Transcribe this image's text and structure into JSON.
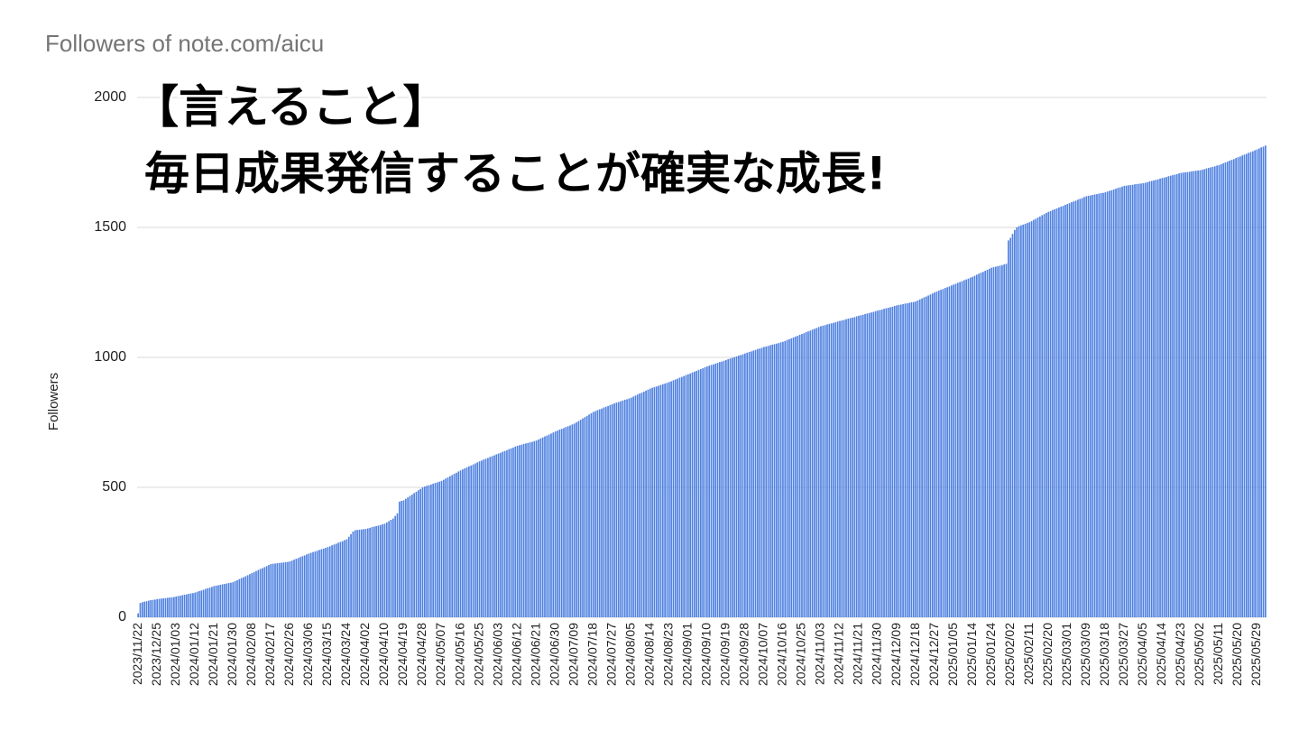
{
  "chart_data": {
    "type": "bar",
    "title": "Followers of note.com/aicu",
    "y_label": "Followers",
    "annotations": [
      "【言えること】",
      "毎日成果発信することが確実な成長!"
    ],
    "color": "#4f81e0",
    "grid": true,
    "ylim": [
      0,
      2000
    ],
    "yticks": [
      0,
      500,
      1000,
      1500,
      2000
    ],
    "categories": [
      "2023/11/22",
      null,
      null,
      null,
      null,
      null,
      null,
      null,
      null,
      "2023/12/25",
      null,
      null,
      null,
      null,
      null,
      null,
      null,
      null,
      "2024/01/03",
      null,
      null,
      null,
      null,
      null,
      null,
      null,
      null,
      "2024/01/12",
      null,
      null,
      null,
      null,
      null,
      null,
      null,
      null,
      "2024/01/21",
      null,
      null,
      null,
      null,
      null,
      null,
      null,
      null,
      "2024/01/30",
      null,
      null,
      null,
      null,
      null,
      null,
      null,
      null,
      "2024/02/08",
      null,
      null,
      null,
      null,
      null,
      null,
      null,
      null,
      "2024/02/17",
      null,
      null,
      null,
      null,
      null,
      null,
      null,
      null,
      "2024/02/26",
      null,
      null,
      null,
      null,
      null,
      null,
      null,
      null,
      "2024/03/06",
      null,
      null,
      null,
      null,
      null,
      null,
      null,
      null,
      "2024/03/15",
      null,
      null,
      null,
      null,
      null,
      null,
      null,
      null,
      "2024/03/24",
      null,
      null,
      null,
      null,
      null,
      null,
      null,
      null,
      "2024/04/02",
      null,
      null,
      null,
      null,
      null,
      null,
      null,
      null,
      "2024/04/10",
      null,
      null,
      null,
      null,
      null,
      null,
      null,
      null,
      "2024/04/19",
      null,
      null,
      null,
      null,
      null,
      null,
      null,
      null,
      "2024/04/28",
      null,
      null,
      null,
      null,
      null,
      null,
      null,
      null,
      "2024/05/07",
      null,
      null,
      null,
      null,
      null,
      null,
      null,
      null,
      "2024/05/16",
      null,
      null,
      null,
      null,
      null,
      null,
      null,
      null,
      "2024/05/25",
      null,
      null,
      null,
      null,
      null,
      null,
      null,
      null,
      "2024/06/03",
      null,
      null,
      null,
      null,
      null,
      null,
      null,
      null,
      "2024/06/12",
      null,
      null,
      null,
      null,
      null,
      null,
      null,
      null,
      "2024/06/21",
      null,
      null,
      null,
      null,
      null,
      null,
      null,
      null,
      "2024/06/30",
      null,
      null,
      null,
      null,
      null,
      null,
      null,
      null,
      "2024/07/09",
      null,
      null,
      null,
      null,
      null,
      null,
      null,
      null,
      "2024/07/18",
      null,
      null,
      null,
      null,
      null,
      null,
      null,
      null,
      "2024/07/27",
      null,
      null,
      null,
      null,
      null,
      null,
      null,
      null,
      "2024/08/05",
      null,
      null,
      null,
      null,
      null,
      null,
      null,
      null,
      "2024/08/14",
      null,
      null,
      null,
      null,
      null,
      null,
      null,
      null,
      "2024/08/23",
      null,
      null,
      null,
      null,
      null,
      null,
      null,
      null,
      "2024/09/01",
      null,
      null,
      null,
      null,
      null,
      null,
      null,
      null,
      "2024/09/10",
      null,
      null,
      null,
      null,
      null,
      null,
      null,
      null,
      "2024/09/19",
      null,
      null,
      null,
      null,
      null,
      null,
      null,
      null,
      "2024/09/28",
      null,
      null,
      null,
      null,
      null,
      null,
      null,
      null,
      "2024/10/07",
      null,
      null,
      null,
      null,
      null,
      null,
      null,
      null,
      "2024/10/16",
      null,
      null,
      null,
      null,
      null,
      null,
      null,
      null,
      "2024/10/25",
      null,
      null,
      null,
      null,
      null,
      null,
      null,
      null,
      "2024/11/03",
      null,
      null,
      null,
      null,
      null,
      null,
      null,
      null,
      "2024/11/12",
      null,
      null,
      null,
      null,
      null,
      null,
      null,
      null,
      "2024/11/21",
      null,
      null,
      null,
      null,
      null,
      null,
      null,
      null,
      "2024/11/30",
      null,
      null,
      null,
      null,
      null,
      null,
      null,
      null,
      "2024/12/09",
      null,
      null,
      null,
      null,
      null,
      null,
      null,
      null,
      "2024/12/18",
      null,
      null,
      null,
      null,
      null,
      null,
      null,
      null,
      "2024/12/27",
      null,
      null,
      null,
      null,
      null,
      null,
      null,
      null,
      "2025/01/05",
      null,
      null,
      null,
      null,
      null,
      null,
      null,
      null,
      "2025/01/14",
      null,
      null,
      null,
      null,
      null,
      null,
      null,
      null,
      "2025/01/24",
      null,
      null,
      null,
      null,
      null,
      null,
      null,
      null,
      "2025/02/02",
      null,
      null,
      null,
      null,
      null,
      null,
      null,
      null,
      "2025/02/11",
      null,
      null,
      null,
      null,
      null,
      null,
      null,
      null,
      "2025/02/20",
      null,
      null,
      null,
      null,
      null,
      null,
      null,
      null,
      "2025/03/01",
      null,
      null,
      null,
      null,
      null,
      null,
      null,
      null,
      "2025/03/09",
      null,
      null,
      null,
      null,
      null,
      null,
      null,
      null,
      "2025/03/18",
      null,
      null,
      null,
      null,
      null,
      null,
      null,
      null,
      "2025/03/27",
      null,
      null,
      null,
      null,
      null,
      null,
      null,
      null,
      "2025/04/05",
      null,
      null,
      null,
      null,
      null,
      null,
      null,
      null,
      "2025/04/14",
      null,
      null,
      null,
      null,
      null,
      null,
      null,
      null,
      "2025/04/23",
      null,
      null,
      null,
      null,
      null,
      null,
      null,
      null,
      "2025/05/02",
      null,
      null,
      null,
      null,
      null,
      null,
      null,
      null,
      "2025/05/11",
      null,
      null,
      null,
      null,
      null,
      null,
      null,
      null,
      "2025/05/20",
      null,
      null,
      null,
      null,
      null,
      null,
      null,
      null,
      "2025/05/29",
      null,
      null,
      null,
      null
    ],
    "values": [
      15,
      55,
      58,
      60,
      62,
      64,
      66,
      67,
      68,
      70,
      71,
      72,
      73,
      74,
      75,
      76,
      77,
      78,
      80,
      82,
      83,
      85,
      87,
      88,
      90,
      92,
      93,
      95,
      98,
      101,
      103,
      106,
      109,
      112,
      114,
      117,
      120,
      122,
      123,
      125,
      127,
      128,
      130,
      132,
      133,
      135,
      139,
      143,
      147,
      151,
      154,
      158,
      162,
      166,
      170,
      174,
      178,
      182,
      186,
      189,
      193,
      197,
      201,
      205,
      206,
      207,
      208,
      209,
      210,
      211,
      212,
      213,
      215,
      218,
      222,
      225,
      228,
      232,
      235,
      238,
      242,
      245,
      248,
      251,
      253,
      256,
      259,
      262,
      264,
      267,
      270,
      273,
      277,
      280,
      283,
      287,
      290,
      293,
      297,
      300,
      310,
      320,
      330,
      335,
      336,
      337,
      338,
      339,
      340,
      342,
      344,
      347,
      349,
      351,
      353,
      355,
      358,
      360,
      365,
      370,
      375,
      380,
      390,
      400,
      445,
      448,
      450,
      456,
      461,
      467,
      472,
      478,
      483,
      489,
      494,
      500,
      503,
      506,
      508,
      511,
      514,
      517,
      519,
      522,
      525,
      529,
      534,
      538,
      543,
      547,
      552,
      556,
      561,
      565,
      569,
      573,
      577,
      581,
      584,
      588,
      592,
      596,
      600,
      603,
      607,
      610,
      613,
      617,
      620,
      623,
      627,
      630,
      633,
      637,
      640,
      643,
      647,
      650,
      653,
      657,
      660,
      662,
      664,
      667,
      669,
      671,
      673,
      675,
      678,
      680,
      684,
      688,
      692,
      696,
      699,
      703,
      707,
      711,
      715,
      718,
      722,
      725,
      728,
      732,
      735,
      738,
      742,
      745,
      750,
      755,
      760,
      765,
      770,
      775,
      780,
      785,
      790,
      793,
      797,
      800,
      803,
      807,
      810,
      813,
      817,
      820,
      823,
      826,
      828,
      831,
      834,
      837,
      839,
      842,
      845,
      849,
      853,
      857,
      861,
      864,
      868,
      872,
      876,
      880,
      883,
      886,
      888,
      891,
      894,
      897,
      899,
      902,
      905,
      908,
      912,
      915,
      918,
      922,
      925,
      928,
      932,
      935,
      938,
      942,
      945,
      948,
      952,
      955,
      958,
      962,
      965,
      968,
      971,
      973,
      976,
      979,
      982,
      984,
      987,
      990,
      993,
      996,
      998,
      1001,
      1004,
      1007,
      1009,
      1012,
      1015,
      1018,
      1021,
      1023,
      1026,
      1029,
      1032,
      1034,
      1037,
      1040,
      1042,
      1044,
      1047,
      1049,
      1051,
      1053,
      1055,
      1058,
      1060,
      1063,
      1067,
      1070,
      1073,
      1077,
      1080,
      1083,
      1087,
      1090,
      1093,
      1097,
      1100,
      1103,
      1107,
      1110,
      1113,
      1117,
      1120,
      1122,
      1124,
      1127,
      1129,
      1131,
      1133,
      1135,
      1138,
      1140,
      1142,
      1144,
      1147,
      1149,
      1151,
      1153,
      1155,
      1158,
      1160,
      1162,
      1164,
      1167,
      1169,
      1171,
      1173,
      1175,
      1178,
      1180,
      1182,
      1184,
      1187,
      1189,
      1191,
      1193,
      1195,
      1198,
      1200,
      1202,
      1203,
      1205,
      1207,
      1208,
      1210,
      1212,
      1213,
      1215,
      1219,
      1223,
      1227,
      1231,
      1234,
      1238,
      1242,
      1246,
      1250,
      1253,
      1257,
      1260,
      1263,
      1267,
      1270,
      1273,
      1277,
      1280,
      1283,
      1287,
      1290,
      1293,
      1297,
      1300,
      1303,
      1307,
      1310,
      1314,
      1318,
      1322,
      1326,
      1329,
      1333,
      1337,
      1341,
      1345,
      1347,
      1349,
      1351,
      1353,
      1355,
      1358,
      1360,
      1450,
      1460,
      1475,
      1490,
      1500,
      1505,
      1508,
      1511,
      1514,
      1517,
      1520,
      1524,
      1529,
      1533,
      1538,
      1542,
      1547,
      1551,
      1556,
      1560,
      1563,
      1567,
      1570,
      1573,
      1577,
      1580,
      1583,
      1587,
      1590,
      1593,
      1597,
      1600,
      1603,
      1607,
      1610,
      1613,
      1617,
      1620,
      1622,
      1623,
      1625,
      1627,
      1628,
      1630,
      1632,
      1633,
      1635,
      1638,
      1641,
      1643,
      1646,
      1649,
      1652,
      1654,
      1657,
      1660,
      1661,
      1662,
      1663,
      1664,
      1666,
      1667,
      1668,
      1669,
      1670,
      1672,
      1674,
      1677,
      1679,
      1681,
      1683,
      1685,
      1688,
      1690,
      1692,
      1694,
      1697,
      1699,
      1701,
      1703,
      1705,
      1708,
      1710,
      1711,
      1712,
      1713,
      1714,
      1716,
      1717,
      1718,
      1719,
      1720,
      1722,
      1724,
      1727,
      1729,
      1731,
      1733,
      1735,
      1738,
      1740,
      1743,
      1747,
      1750,
      1753,
      1757,
      1760,
      1763,
      1767,
      1770,
      1773,
      1777,
      1780,
      1783,
      1787,
      1790,
      1793,
      1797,
      1800,
      1804,
      1808,
      1811,
      1815
    ]
  }
}
